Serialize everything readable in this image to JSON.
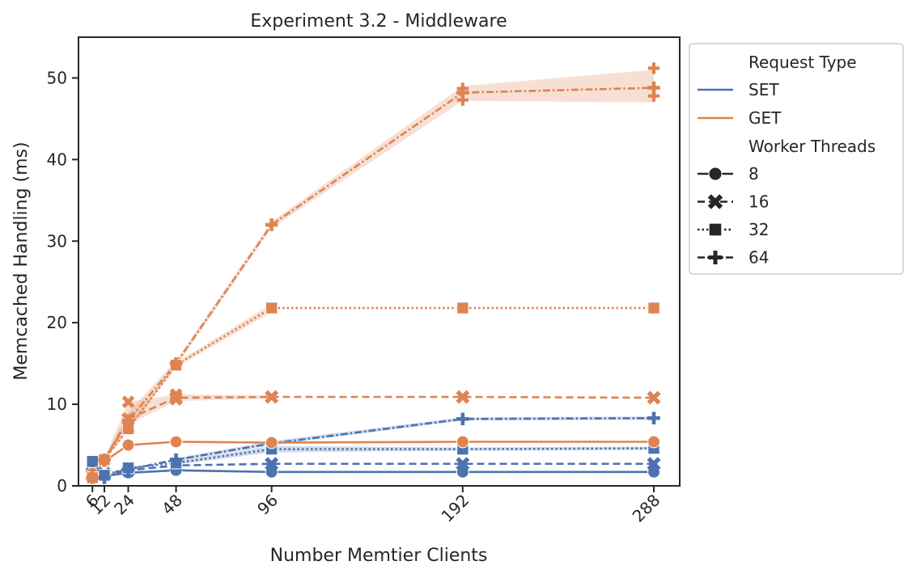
{
  "chart_data": {
    "type": "line",
    "title": "Experiment 3.2 - Middleware",
    "xlabel": "Number Memtier Clients",
    "ylabel": "Memcached Handling (ms)",
    "x": [
      6,
      12,
      24,
      48,
      96,
      192,
      288
    ],
    "x_tick_labels": [
      "6",
      "12",
      "24",
      "48",
      "96",
      "192",
      "288"
    ],
    "xlim": [
      -1,
      301
    ],
    "ylim": [
      0,
      55
    ],
    "y_ticks": [
      0,
      10,
      20,
      30,
      40,
      50
    ],
    "x_tick_rotation_deg": -45,
    "grid": false,
    "legend_placement": "outside upper-right",
    "legend": {
      "hue_title": "Request Type",
      "style_title": "Worker Threads",
      "hue_entries": [
        {
          "name": "SET",
          "color": "#4c72b0"
        },
        {
          "name": "GET",
          "color": "#dd8452"
        }
      ],
      "style_entries": [
        {
          "name": "8",
          "marker": "circle",
          "dash": "solid"
        },
        {
          "name": "16",
          "marker": "x",
          "dash": "dashed"
        },
        {
          "name": "32",
          "marker": "square",
          "dash": "dotted"
        },
        {
          "name": "64",
          "marker": "plus",
          "dash": "dashdot"
        }
      ]
    },
    "series": [
      {
        "request": "SET",
        "threads": "8",
        "values": [
          1.0,
          1.2,
          1.6,
          1.9,
          1.7,
          1.7,
          1.7
        ]
      },
      {
        "request": "SET",
        "threads": "16",
        "values": [
          1.3,
          1.5,
          1.9,
          2.5,
          2.7,
          2.7,
          2.7
        ]
      },
      {
        "request": "SET",
        "threads": "32",
        "values": [
          3.0,
          1.3,
          2.2,
          2.8,
          4.5,
          4.5,
          4.6
        ]
      },
      {
        "request": "SET",
        "threads": "64",
        "values": [
          2.0,
          1.0,
          2.0,
          3.2,
          5.2,
          8.2,
          8.3
        ]
      },
      {
        "request": "GET",
        "threads": "8",
        "values": [
          1.5,
          3.0,
          5.0,
          5.4,
          5.3,
          5.4,
          5.4
        ]
      },
      {
        "request": "GET",
        "threads": "16",
        "values": [
          1.2,
          3.2,
          8.2,
          10.8,
          10.9,
          10.9,
          10.8
        ]
      },
      {
        "request": "GET",
        "threads": "32",
        "values": [
          1.0,
          3.2,
          7.0,
          14.8,
          21.8,
          21.8,
          21.8
        ]
      },
      {
        "request": "GET",
        "threads": "64",
        "values": [
          1.0,
          3.2,
          8.0,
          15.0,
          32.0,
          48.2,
          48.8
        ]
      }
    ],
    "confidence_bands": [
      {
        "request": "SET",
        "threads": "64",
        "x": [
          48,
          96,
          192,
          288
        ],
        "low": [
          3.0,
          5.0,
          8.0,
          8.1
        ],
        "high": [
          3.4,
          5.5,
          8.4,
          8.5
        ]
      },
      {
        "request": "SET",
        "threads": "32",
        "x": [
          48,
          96,
          192,
          288
        ],
        "low": [
          2.6,
          4.1,
          4.3,
          4.4
        ],
        "high": [
          3.0,
          4.9,
          4.7,
          4.8
        ]
      },
      {
        "request": "GET",
        "threads": "64",
        "x": [
          12,
          24,
          48,
          96,
          192,
          288
        ],
        "low": [
          3.0,
          7.0,
          14.6,
          31.6,
          47.2,
          47.0
        ],
        "high": [
          3.4,
          9.0,
          15.4,
          32.4,
          49.0,
          51.0
        ]
      },
      {
        "request": "GET",
        "threads": "32",
        "x": [
          12,
          24,
          48,
          96
        ],
        "low": [
          3.0,
          6.8,
          14.5,
          21.3
        ],
        "high": [
          3.4,
          7.2,
          15.1,
          22.3
        ]
      },
      {
        "request": "GET",
        "threads": "16",
        "x": [
          12,
          24,
          48,
          96
        ],
        "low": [
          3.0,
          7.5,
          10.4,
          10.7
        ],
        "high": [
          3.4,
          10.3,
          11.2,
          11.1
        ]
      }
    ],
    "replicate_points": [
      {
        "request": "GET",
        "threads": "64",
        "x": 192,
        "values": [
          47.3,
          48.7
        ]
      },
      {
        "request": "GET",
        "threads": "64",
        "x": 288,
        "values": [
          51.2,
          47.8
        ]
      },
      {
        "request": "GET",
        "threads": "16",
        "x": 24,
        "values": [
          10.3,
          7.2
        ]
      },
      {
        "request": "GET",
        "threads": "16",
        "x": 48,
        "values": [
          11.2,
          10.6
        ]
      }
    ]
  }
}
